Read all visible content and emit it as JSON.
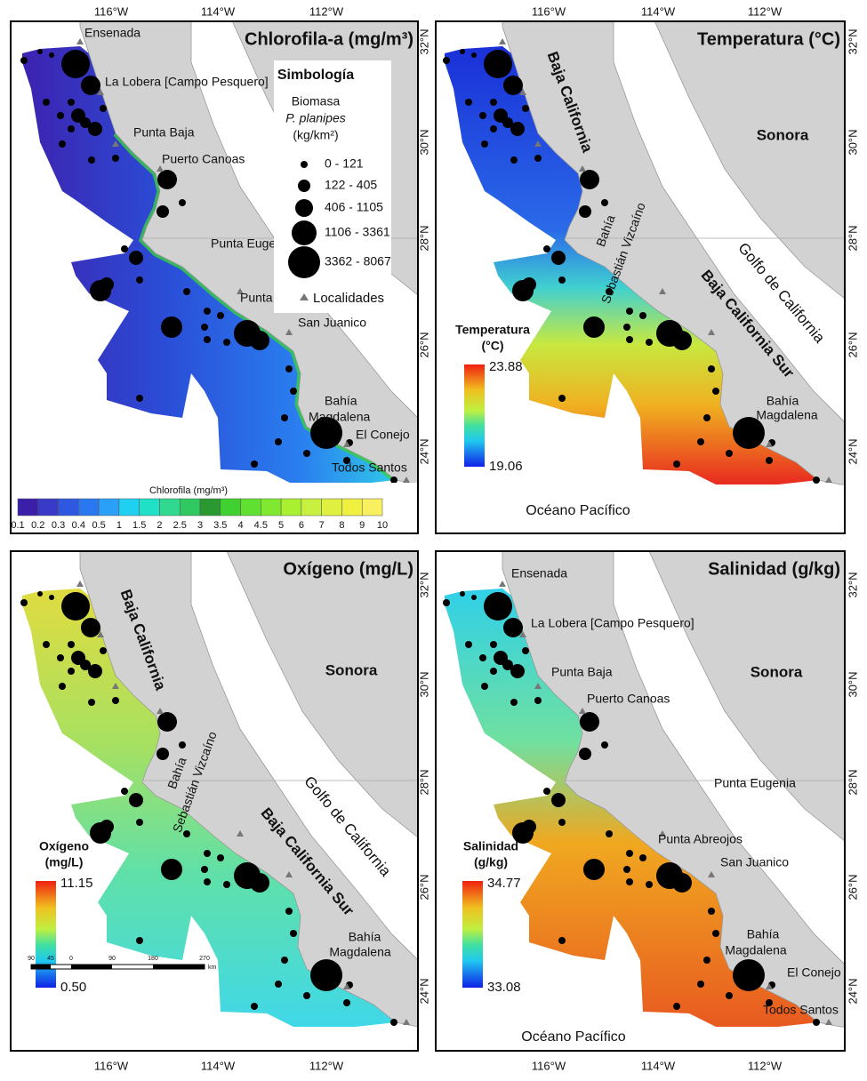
{
  "axes": {
    "lon": [
      "116°W",
      "114°W",
      "112°W"
    ],
    "lat": [
      "32°N",
      "30°N",
      "28°N",
      "26°N",
      "24°N"
    ]
  },
  "panels": [
    {
      "title": "Chlorofila-a (mg/m³)",
      "places": [
        {
          "lines": [
            "Ensenada"
          ]
        },
        {
          "lines": [
            "La Lobera [Campo Pesquero]"
          ]
        },
        {
          "lines": [
            "Punta Baja"
          ]
        },
        {
          "lines": [
            "Puerto Canoas"
          ]
        },
        {
          "lines": [
            "Punta Eugenia"
          ]
        },
        {
          "lines": [
            "Punta Abreojos"
          ]
        },
        {
          "lines": [
            "San Juanico"
          ]
        },
        {
          "lines": [
            "Bahía",
            "Magdalena"
          ]
        },
        {
          "lines": [
            "El Conejo"
          ]
        },
        {
          "lines": [
            "Todos Santos"
          ]
        }
      ],
      "colorbar": {
        "title": "Chlorofila (mg/m³)",
        "labels": [
          0.1,
          0.2,
          0.3,
          0.4,
          0.5,
          1,
          1.5,
          2,
          2.5,
          3,
          3.5,
          4,
          4.5,
          5,
          6,
          7,
          8,
          9,
          10
        ]
      },
      "legend": {
        "title": "Simbología",
        "subtitle": [
          "Biomasa",
          "P. planipes",
          "(kg/km²)"
        ],
        "classes": [
          "0 - 121",
          "122 - 405",
          "406 - 1105",
          "1106 - 3361",
          "3362 - 8067"
        ],
        "localities": "Localidades"
      }
    },
    {
      "title": "Temperatura (°C)",
      "places": [
        {
          "lines": [
            "Baja California"
          ]
        },
        {
          "lines": [
            "Sonora"
          ]
        },
        {
          "lines": [
            "Bahía",
            "Sebastián Vizcaíno"
          ]
        },
        {
          "lines": [
            "Golfo de California"
          ]
        },
        {
          "lines": [
            "Baja California Sur"
          ]
        },
        {
          "lines": [
            "Bahía",
            "Magdalena"
          ]
        },
        {
          "lines": [
            "Océano Pacífico"
          ]
        }
      ],
      "colorbar": {
        "title": [
          "Temperatura",
          "(°C)"
        ],
        "max": "23.88",
        "min": "19.06"
      }
    },
    {
      "title": "Oxígeno (mg/L)",
      "places": [
        {
          "lines": [
            "Baja California"
          ]
        },
        {
          "lines": [
            "Sonora"
          ]
        },
        {
          "lines": [
            "Bahía",
            "Sebastián Vizcaíno"
          ]
        },
        {
          "lines": [
            "Golfo de California"
          ]
        },
        {
          "lines": [
            "Baja California Sur"
          ]
        },
        {
          "lines": [
            "Bahía",
            "Magdalena"
          ]
        }
      ],
      "colorbar": {
        "title": [
          "Oxígeno",
          "(mg/L)"
        ],
        "max": "11.15",
        "min": "0.50"
      },
      "scale_bar": {
        "labels": [
          "90",
          "45",
          "0",
          "90",
          "180",
          "270"
        ],
        "unit": "km"
      }
    },
    {
      "title": "Salinidad (g/kg)",
      "places": [
        {
          "lines": [
            "Ensenada"
          ]
        },
        {
          "lines": [
            "La Lobera [Campo Pesquero]"
          ]
        },
        {
          "lines": [
            "Punta Baja"
          ]
        },
        {
          "lines": [
            "Puerto Canoas"
          ]
        },
        {
          "lines": [
            "Sonora"
          ]
        },
        {
          "lines": [
            "Punta Eugenia"
          ]
        },
        {
          "lines": [
            "Punta Abreojos"
          ]
        },
        {
          "lines": [
            "San Juanico"
          ]
        },
        {
          "lines": [
            "Bahía",
            "Magdalena"
          ]
        },
        {
          "lines": [
            "El Conejo"
          ]
        },
        {
          "lines": [
            "Todos Santos"
          ]
        },
        {
          "lines": [
            "Océano Pacífico"
          ]
        }
      ],
      "colorbar": {
        "title": [
          "Salinidad",
          "(g/kg)"
        ],
        "max": "34.77",
        "min": "33.08"
      }
    }
  ]
}
